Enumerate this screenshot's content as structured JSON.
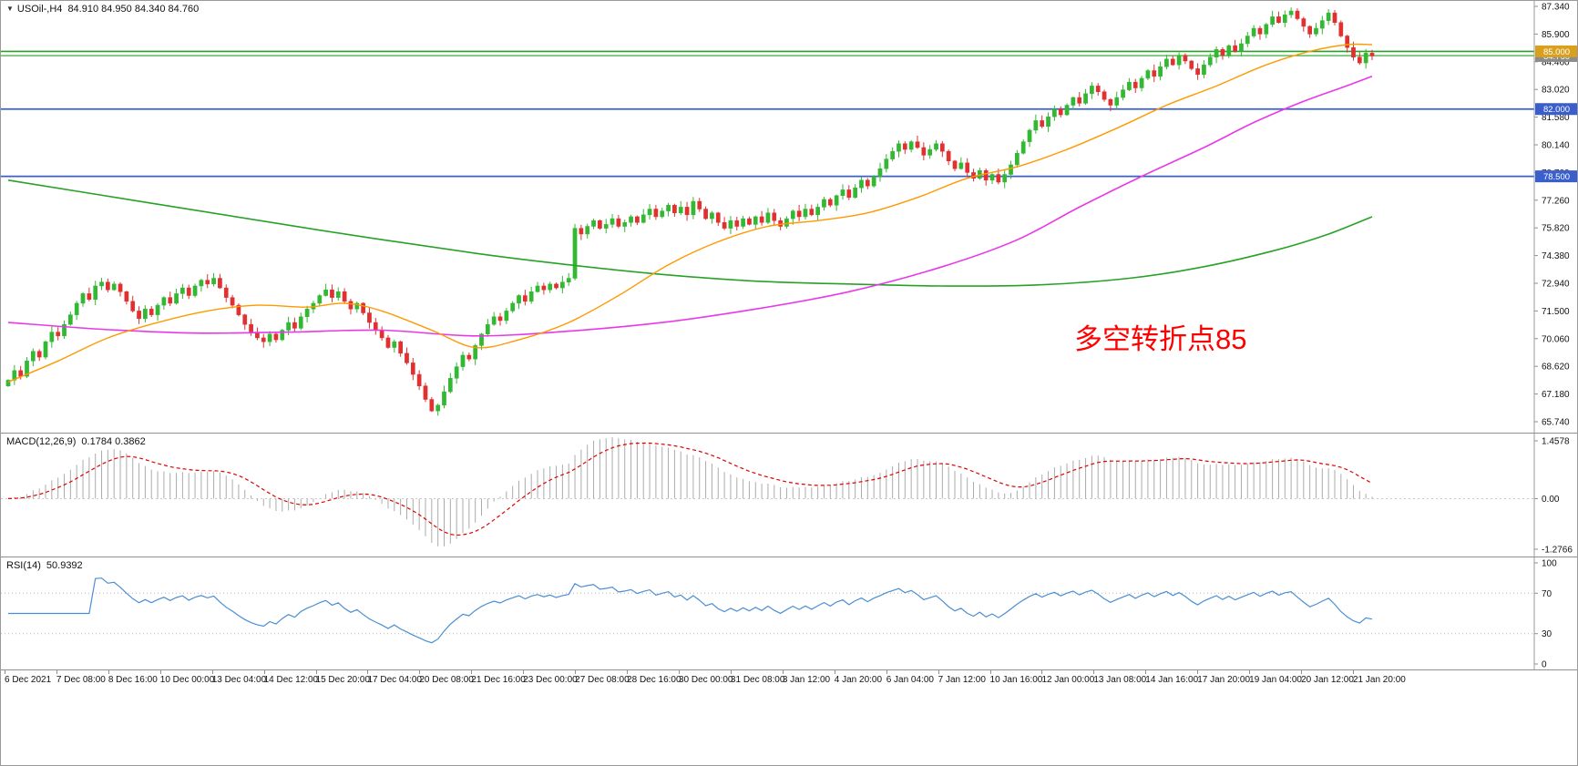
{
  "chart_header": {
    "collapse_icon": "▼",
    "symbol": "USOil-,H4",
    "ohlc": "84.910 84.950 84.340 84.760"
  },
  "annotation": {
    "text": "多空转折点85",
    "color": "#FF0000"
  },
  "indicators": {
    "macd": {
      "label": "MACD(12,26,9)",
      "values": "0.1784 0.3862"
    },
    "rsi": {
      "label": "RSI(14)",
      "values": "50.9392"
    }
  },
  "chart_data": {
    "type": "candlestick",
    "symbol": "USOil",
    "timeframe": "H4",
    "ohlc_display": {
      "open": 84.91,
      "high": 84.95,
      "low": 84.34,
      "close": 84.76
    },
    "price_axis": {
      "min": 65.74,
      "max": 87.34,
      "tick_interval": 1.44,
      "ticks": [
        87.34,
        85.9,
        84.46,
        83.02,
        81.58,
        80.14,
        78.7,
        77.26,
        75.82,
        74.38,
        72.94,
        71.5,
        70.06,
        68.62,
        67.18,
        65.74
      ]
    },
    "time_axis": [
      "6 Dec 2021",
      "7 Dec 08:00",
      "8 Dec 16:00",
      "10 Dec 00:00",
      "13 Dec 04:00",
      "14 Dec 12:00",
      "15 Dec 20:00",
      "17 Dec 04:00",
      "20 Dec 08:00",
      "21 Dec 16:00",
      "23 Dec 00:00",
      "27 Dec 08:00",
      "28 Dec 16:00",
      "30 Dec 00:00",
      "31 Dec 08:00",
      "3 Jan 12:00",
      "4 Jan 20:00",
      "6 Jan 04:00",
      "7 Jan 12:00",
      "10 Jan 16:00",
      "12 Jan 00:00",
      "13 Jan 08:00",
      "14 Jan 16:00",
      "17 Jan 20:00",
      "19 Jan 04:00",
      "20 Jan 12:00",
      "21 Jan 20:00"
    ],
    "levels": [
      {
        "price": 85.0,
        "color": "#27A227",
        "width": 1.6,
        "badge": {
          "text": "85.000",
          "bg": "#D8A01D"
        }
      },
      {
        "price": 84.78,
        "color": "#27A227",
        "width": 1.2
      },
      {
        "price": 82.0,
        "color": "#3A5FCD",
        "width": 1.8,
        "badge": {
          "text": "82.000",
          "bg": "#3A5FCD"
        }
      },
      {
        "price": 78.5,
        "color": "#3A5FCD",
        "width": 1.8,
        "badge": {
          "text": "78.500",
          "bg": "#3A5FCD"
        }
      }
    ],
    "current_price": {
      "value": 84.76,
      "badge": {
        "text": "84.760",
        "bg": "#8C8C8C"
      }
    },
    "candles": {
      "bull_color": "#33B833",
      "bear_color": "#E03131",
      "first_open": 67.6,
      "closes": [
        67.9,
        68.4,
        68.1,
        68.9,
        69.4,
        69.1,
        69.9,
        70.4,
        70.2,
        70.8,
        71.3,
        71.9,
        72.4,
        72.1,
        72.8,
        73.0,
        72.6,
        72.9,
        72.5,
        72.0,
        71.5,
        71.1,
        71.6,
        71.3,
        71.8,
        72.2,
        71.9,
        72.4,
        72.7,
        72.3,
        72.8,
        73.1,
        72.9,
        73.2,
        72.7,
        72.2,
        71.8,
        71.3,
        70.8,
        70.4,
        70.1,
        69.9,
        70.3,
        70.0,
        70.5,
        70.9,
        70.6,
        71.2,
        71.6,
        71.9,
        72.3,
        72.6,
        72.2,
        72.5,
        72.0,
        71.6,
        71.9,
        71.4,
        70.9,
        70.5,
        70.1,
        69.6,
        69.9,
        69.3,
        68.8,
        68.2,
        67.6,
        66.9,
        66.3,
        66.6,
        67.3,
        68.0,
        68.6,
        69.2,
        69.0,
        69.7,
        70.3,
        70.8,
        71.2,
        71.0,
        71.5,
        71.9,
        72.3,
        72.0,
        72.5,
        72.8,
        72.6,
        72.9,
        72.7,
        73.0,
        73.2,
        75.8,
        75.5,
        75.9,
        76.2,
        75.8,
        76.0,
        76.3,
        75.9,
        76.1,
        76.4,
        76.1,
        76.5,
        76.8,
        76.4,
        76.7,
        77.0,
        76.6,
        76.9,
        76.5,
        77.2,
        76.8,
        76.3,
        76.6,
        76.1,
        75.8,
        76.2,
        75.9,
        76.3,
        76.0,
        76.4,
        76.1,
        76.6,
        76.2,
        75.9,
        76.3,
        76.7,
        76.4,
        76.8,
        76.5,
        76.9,
        77.3,
        77.0,
        77.5,
        77.8,
        77.4,
        77.9,
        78.3,
        78.0,
        78.5,
        78.9,
        79.4,
        79.8,
        80.2,
        79.9,
        80.3,
        80.0,
        79.6,
        79.9,
        80.2,
        79.8,
        79.3,
        78.9,
        79.2,
        78.7,
        78.4,
        78.8,
        78.3,
        78.6,
        78.2,
        78.6,
        79.1,
        79.7,
        80.3,
        80.9,
        81.4,
        81.1,
        81.6,
        82.0,
        81.7,
        82.2,
        82.6,
        82.3,
        82.8,
        83.2,
        82.9,
        82.5,
        82.2,
        82.6,
        83.0,
        83.4,
        83.1,
        83.6,
        84.0,
        83.7,
        84.2,
        84.6,
        84.3,
        84.8,
        84.5,
        84.1,
        83.8,
        84.3,
        84.7,
        85.1,
        84.8,
        85.3,
        85.0,
        85.4,
        85.8,
        86.2,
        85.9,
        86.4,
        86.8,
        86.5,
        86.9,
        87.1,
        86.7,
        86.3,
        85.9,
        86.2,
        86.6,
        87.0,
        86.5,
        85.8,
        85.2,
        84.7,
        84.4,
        84.91,
        84.76
      ]
    },
    "moving_averages": [
      {
        "name": "slow-ma",
        "color": "#27A227",
        "width": 1.6,
        "anchors": [
          [
            0,
            78.3
          ],
          [
            25,
            77.0
          ],
          [
            50,
            75.7
          ],
          [
            75,
            74.5
          ],
          [
            90,
            73.9
          ],
          [
            105,
            73.4
          ],
          [
            120,
            73.05
          ],
          [
            135,
            72.9
          ],
          [
            150,
            72.8
          ],
          [
            165,
            72.85
          ],
          [
            180,
            73.2
          ],
          [
            192,
            73.8
          ],
          [
            204,
            74.7
          ],
          [
            212,
            75.5
          ],
          [
            219,
            76.4
          ]
        ]
      },
      {
        "name": "mid-ma",
        "color": "#E838E8",
        "width": 1.6,
        "anchors": [
          [
            0,
            70.9
          ],
          [
            15,
            70.55
          ],
          [
            30,
            70.35
          ],
          [
            45,
            70.4
          ],
          [
            60,
            70.5
          ],
          [
            75,
            70.2
          ],
          [
            90,
            70.45
          ],
          [
            105,
            70.9
          ],
          [
            120,
            71.6
          ],
          [
            135,
            72.5
          ],
          [
            150,
            73.8
          ],
          [
            162,
            75.2
          ],
          [
            172,
            76.9
          ],
          [
            182,
            78.5
          ],
          [
            192,
            80.0
          ],
          [
            200,
            81.3
          ],
          [
            208,
            82.4
          ],
          [
            214,
            83.1
          ],
          [
            219,
            83.7
          ]
        ]
      },
      {
        "name": "fast-ma",
        "color": "#FF9900",
        "width": 1.4,
        "anchors": [
          [
            0,
            67.8
          ],
          [
            8,
            68.9
          ],
          [
            16,
            70.1
          ],
          [
            24,
            70.9
          ],
          [
            32,
            71.5
          ],
          [
            40,
            71.8
          ],
          [
            48,
            71.7
          ],
          [
            54,
            71.9
          ],
          [
            60,
            71.5
          ],
          [
            68,
            70.5
          ],
          [
            75,
            69.6
          ],
          [
            82,
            70.0
          ],
          [
            90,
            70.9
          ],
          [
            98,
            72.3
          ],
          [
            106,
            73.9
          ],
          [
            114,
            75.1
          ],
          [
            122,
            75.9
          ],
          [
            130,
            76.2
          ],
          [
            138,
            76.6
          ],
          [
            146,
            77.4
          ],
          [
            154,
            78.4
          ],
          [
            162,
            79.0
          ],
          [
            170,
            79.9
          ],
          [
            178,
            81.0
          ],
          [
            186,
            82.2
          ],
          [
            194,
            83.2
          ],
          [
            202,
            84.3
          ],
          [
            209,
            85.0
          ],
          [
            215,
            85.35
          ],
          [
            219,
            85.35
          ]
        ]
      }
    ],
    "macd": {
      "fast": 12,
      "slow": 26,
      "signal_period": 9,
      "range": [
        -1.2766,
        1.4578
      ],
      "scale_labels": [
        {
          "text": "1.4578",
          "value": 1.4578
        },
        {
          "text": "0.00",
          "value": 0
        },
        {
          "text": "-1.2766",
          "value": -1.2766
        }
      ],
      "histogram_color": "#ABABAB",
      "signal_color": "#E00000",
      "current_values": {
        "macd": 0.1784,
        "signal": 0.3862
      }
    },
    "rsi": {
      "period": 14,
      "range": [
        0,
        100
      ],
      "levels": [
        70,
        30
      ],
      "scale_labels": [
        {
          "text": "100",
          "value": 100
        },
        {
          "text": "70",
          "value": 70
        },
        {
          "text": "30",
          "value": 30
        },
        {
          "text": "0",
          "value": 0
        }
      ],
      "line_color": "#4B8ED3",
      "level_color": "#B5B5B5",
      "current_value": 50.9392
    }
  }
}
